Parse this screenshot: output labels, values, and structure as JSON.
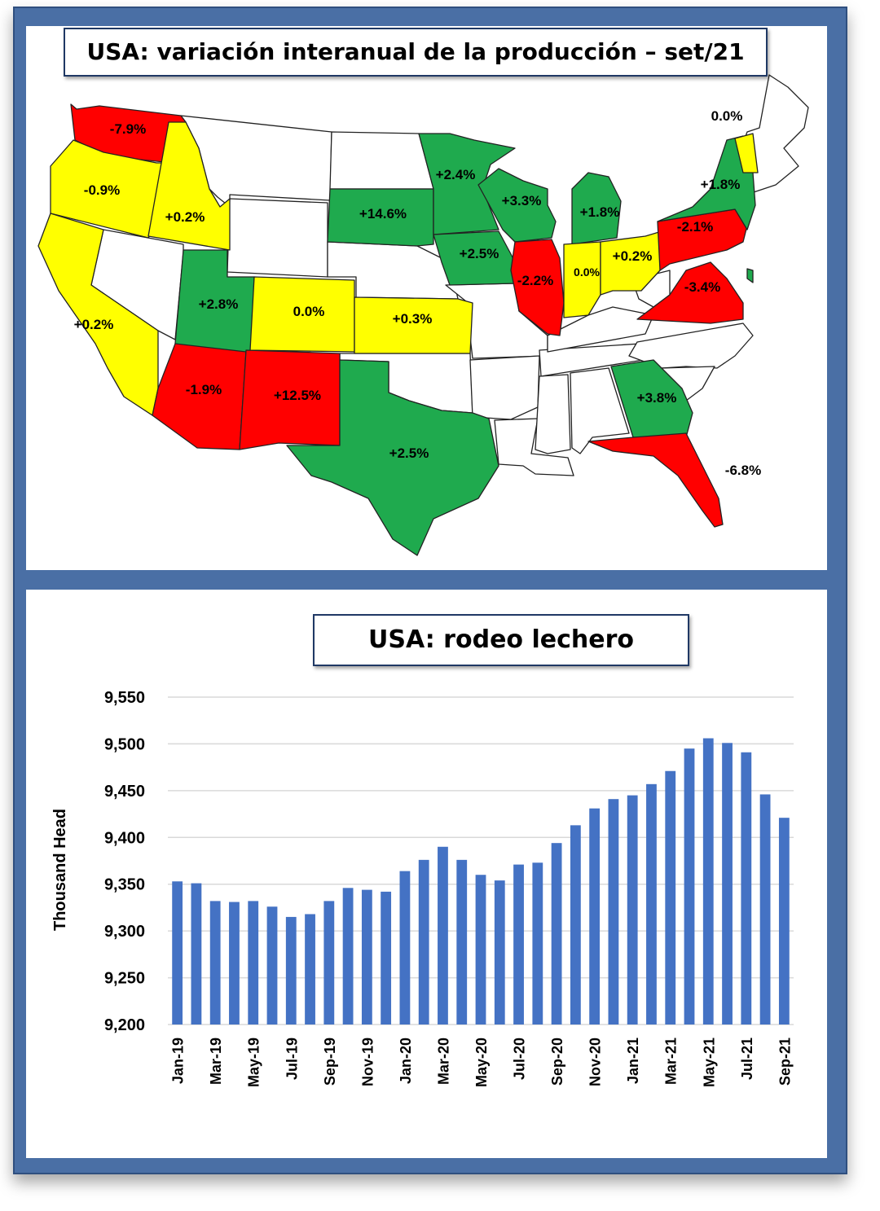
{
  "map": {
    "title": "USA: variación interanual de la producción – set/21",
    "states": [
      {
        "id": "WA",
        "label": "-7.9%",
        "color": "#ff0000"
      },
      {
        "id": "OR",
        "label": "-0.9%",
        "color": "#ffff00"
      },
      {
        "id": "ID",
        "label": "+0.2%",
        "color": "#ffff00"
      },
      {
        "id": "CA",
        "label": "+0.2%",
        "color": "#ffff00"
      },
      {
        "id": "UT",
        "label": "+2.8%",
        "color": "#1faa4e"
      },
      {
        "id": "CO",
        "label": "0.0%",
        "color": "#ffff00"
      },
      {
        "id": "AZ",
        "label": "-1.9%",
        "color": "#ff0000"
      },
      {
        "id": "NM",
        "label": "+12.5%",
        "color": "#ff0000"
      },
      {
        "id": "SD",
        "label": "+14.6%",
        "color": "#1faa4e"
      },
      {
        "id": "KS",
        "label": "+0.3%",
        "color": "#ffff00"
      },
      {
        "id": "TX",
        "label": "+2.5%",
        "color": "#1faa4e"
      },
      {
        "id": "MN",
        "label": "+2.4%",
        "color": "#1faa4e"
      },
      {
        "id": "IA",
        "label": "+2.5%",
        "color": "#1faa4e"
      },
      {
        "id": "WI",
        "label": "+3.3%",
        "color": "#1faa4e"
      },
      {
        "id": "IL",
        "label": "-2.2%",
        "color": "#ff0000"
      },
      {
        "id": "MI",
        "label": "+1.8%",
        "color": "#1faa4e"
      },
      {
        "id": "IN",
        "label": "0.0%",
        "color": "#ffff00"
      },
      {
        "id": "OH",
        "label": "+0.2%",
        "color": "#ffff00"
      },
      {
        "id": "PA",
        "label": "-2.1%",
        "color": "#ff0000"
      },
      {
        "id": "NY",
        "label": "+1.8%",
        "color": "#1faa4e"
      },
      {
        "id": "VT",
        "label": "0.0%",
        "color": "#ffff00"
      },
      {
        "id": "VA",
        "label": "-3.4%",
        "color": "#ff0000"
      },
      {
        "id": "GA",
        "label": "+3.8%",
        "color": "#1faa4e"
      },
      {
        "id": "FL",
        "label": "-6.8%",
        "color": "#ff0000"
      }
    ]
  },
  "chart_data": {
    "type": "bar",
    "title": "USA: rodeo lechero",
    "ylabel": "Thousand Head",
    "xlabel": "",
    "ylim": [
      9200,
      9550
    ],
    "yticks": [
      "9,200",
      "9,250",
      "9,300",
      "9,350",
      "9,400",
      "9,450",
      "9,500",
      "9,550"
    ],
    "grid": true,
    "bar_color": "#4472c4",
    "categories": [
      "Jan-19",
      "Feb-19",
      "Mar-19",
      "Apr-19",
      "May-19",
      "Jun-19",
      "Jul-19",
      "Aug-19",
      "Sep-19",
      "Oct-19",
      "Nov-19",
      "Dec-19",
      "Jan-20",
      "Feb-20",
      "Mar-20",
      "Apr-20",
      "May-20",
      "Jun-20",
      "Jul-20",
      "Aug-20",
      "Sep-20",
      "Oct-20",
      "Nov-20",
      "Dec-20",
      "Jan-21",
      "Feb-21",
      "Mar-21",
      "Apr-21",
      "May-21",
      "Jun-21",
      "Jul-21",
      "Aug-21",
      "Sep-21"
    ],
    "tick_labels": [
      "Jan-19",
      "Mar-19",
      "May-19",
      "Jul-19",
      "Sep-19",
      "Nov-19",
      "Jan-20",
      "Mar-20",
      "May-20",
      "Jul-20",
      "Sep-20",
      "Nov-20",
      "Jan-21",
      "Mar-21",
      "May-21",
      "Jul-21",
      "Sep-21"
    ],
    "values": [
      9353,
      9351,
      9332,
      9331,
      9332,
      9326,
      9315,
      9318,
      9332,
      9346,
      9344,
      9342,
      9364,
      9376,
      9390,
      9376,
      9360,
      9354,
      9371,
      9373,
      9394,
      9413,
      9431,
      9441,
      9445,
      9457,
      9471,
      9495,
      9506,
      9501,
      9491,
      9446,
      9421
    ]
  }
}
